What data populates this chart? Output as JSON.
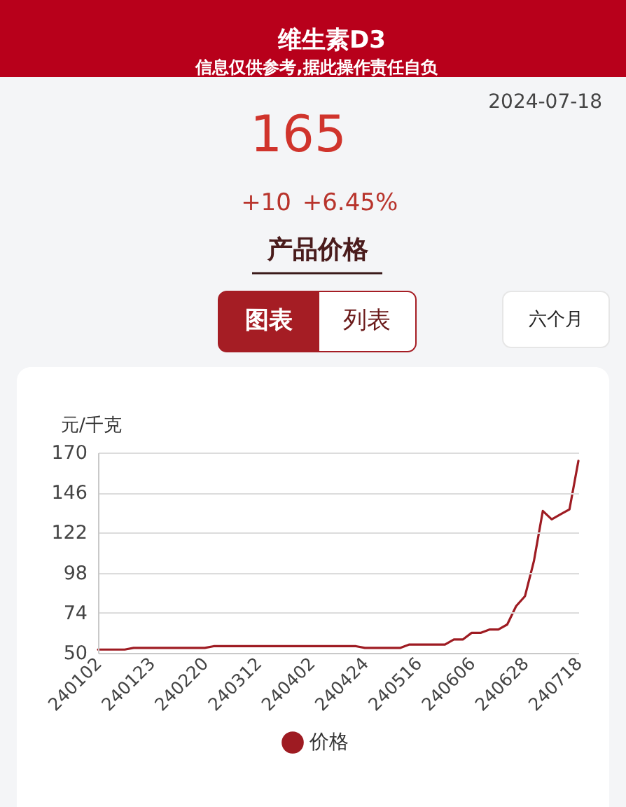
{
  "chart_data": {
    "type": "line",
    "title": "维生素D3",
    "subtitle": "信息仅供参考,据此操作责任自负",
    "ylabel": "元/千克",
    "categories": [
      "240102",
      null,
      null,
      null,
      null,
      null,
      "240123",
      null,
      null,
      null,
      null,
      null,
      "240220",
      null,
      null,
      null,
      null,
      null,
      "240312",
      null,
      null,
      null,
      null,
      null,
      "240402",
      null,
      null,
      null,
      null,
      null,
      "240424",
      null,
      null,
      null,
      null,
      null,
      "240516",
      null,
      null,
      null,
      null,
      null,
      "240606",
      null,
      null,
      null,
      null,
      null,
      "240628",
      null,
      null,
      null,
      null,
      null,
      "240718"
    ],
    "series": [
      {
        "name": "价格",
        "color": "#9e1b22",
        "values": [
          52,
          52,
          52,
          52,
          53,
          53,
          53,
          53,
          53,
          53,
          53,
          53,
          53,
          54,
          54,
          54,
          54,
          54,
          54,
          54,
          54,
          54,
          54,
          54,
          54,
          54,
          54,
          54,
          54,
          54,
          53,
          53,
          53,
          53,
          53,
          55,
          55,
          55,
          55,
          55,
          58,
          58,
          62,
          62,
          64,
          64,
          67,
          78,
          84,
          105,
          135,
          130,
          133,
          136,
          165
        ]
      }
    ],
    "ylim": [
      50,
      170
    ],
    "yticks": [
      50,
      74,
      98,
      122,
      146,
      170
    ],
    "grid": "y",
    "legend": "bottom",
    "annotations": [
      "2024-07-18",
      "165",
      "+10",
      "+6.45%",
      "产品价格",
      "图表",
      "列表",
      "六个月"
    ]
  }
}
